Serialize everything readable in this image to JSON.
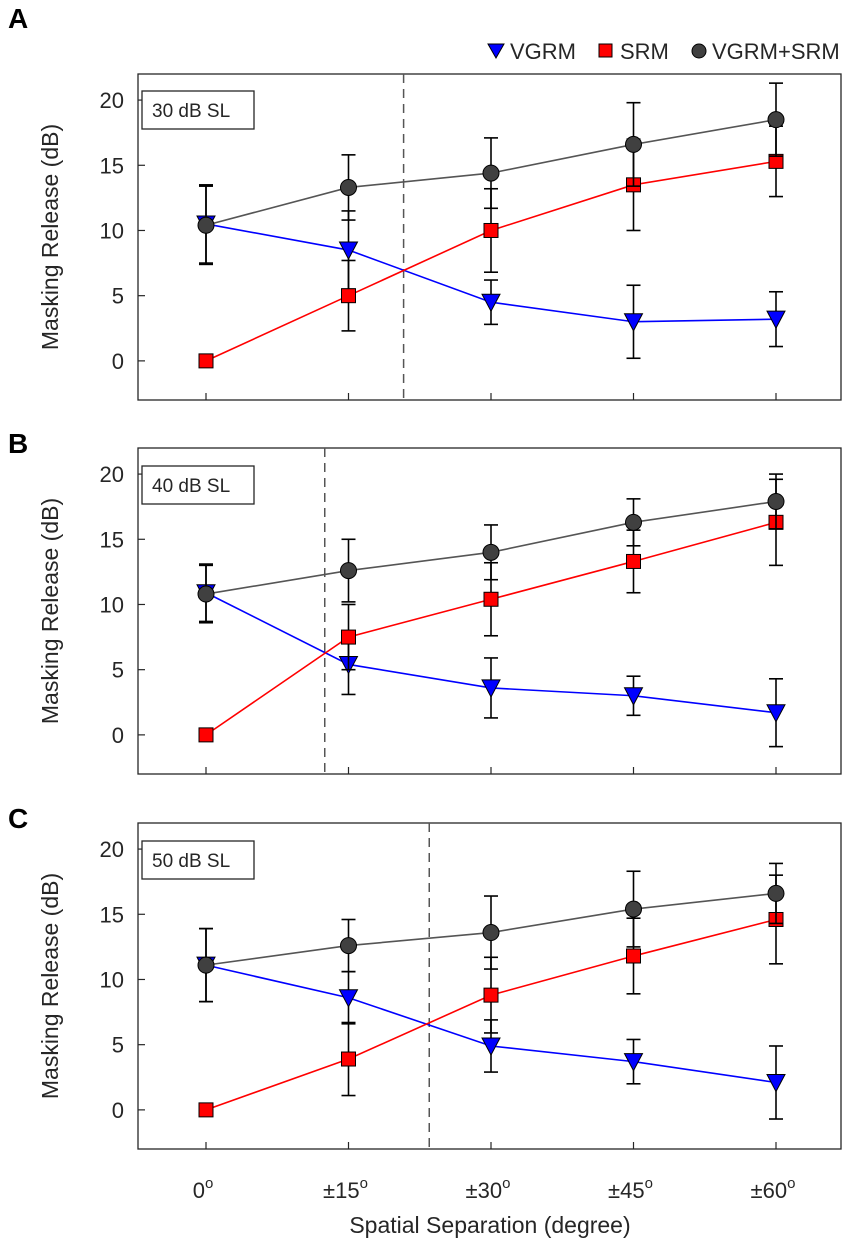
{
  "figure": {
    "xlabel": "Spatial Separation (degree)",
    "ylabel": "Masking Release (dB)",
    "legend": [
      {
        "label": "VGRM",
        "marker": "triangle-down",
        "color": "#0000ff"
      },
      {
        "label": "SRM",
        "marker": "square",
        "color": "#ff0000"
      },
      {
        "label": "VGRM+SRM",
        "marker": "circle",
        "color": "#404040"
      }
    ],
    "x_tick_labels": [
      {
        "base": "0",
        "sup": "o"
      },
      {
        "base": "±15",
        "sup": "o"
      },
      {
        "base": "±30",
        "sup": "o"
      },
      {
        "base": "±45",
        "sup": "o"
      },
      {
        "base": "±60",
        "sup": "o"
      }
    ]
  },
  "chart_data": [
    {
      "type": "line",
      "panel": "A",
      "annotation": "30 dB SL",
      "x": [
        0,
        15,
        30,
        45,
        60
      ],
      "ylim": [
        -3,
        22
      ],
      "yticks": [
        0,
        5,
        10,
        15,
        20
      ],
      "crossover_x": 20.8,
      "series": [
        {
          "name": "VGRM",
          "values": [
            10.5,
            8.5,
            4.5,
            3.0,
            3.2
          ],
          "err_low": [
            3.0,
            3.0,
            1.7,
            2.8,
            2.1
          ],
          "err_high": [
            3.0,
            3.0,
            1.7,
            2.8,
            2.1
          ]
        },
        {
          "name": "SRM",
          "values": [
            0.0,
            5.0,
            10.0,
            13.5,
            15.3
          ],
          "err_low": [
            0.0,
            2.7,
            3.2,
            3.5,
            2.7
          ],
          "err_high": [
            0.0,
            2.7,
            3.2,
            3.5,
            2.7
          ]
        },
        {
          "name": "VGRM+SRM",
          "values": [
            10.4,
            13.3,
            14.4,
            16.6,
            18.5
          ],
          "err_low": [
            3.0,
            2.5,
            2.7,
            3.2,
            2.8
          ],
          "err_high": [
            3.0,
            2.5,
            2.7,
            3.2,
            2.8
          ]
        }
      ]
    },
    {
      "type": "line",
      "panel": "B",
      "annotation": "40 dB SL",
      "x": [
        0,
        15,
        30,
        45,
        60
      ],
      "ylim": [
        -3,
        22
      ],
      "yticks": [
        0,
        5,
        10,
        15,
        20
      ],
      "crossover_x": 12.5,
      "series": [
        {
          "name": "VGRM",
          "values": [
            10.9,
            5.4,
            3.6,
            3.0,
            1.7
          ],
          "err_low": [
            2.2,
            2.3,
            2.3,
            1.5,
            2.6
          ],
          "err_high": [
            2.2,
            2.3,
            2.3,
            1.5,
            2.6
          ]
        },
        {
          "name": "SRM",
          "values": [
            0.0,
            7.5,
            10.4,
            13.3,
            16.3
          ],
          "err_low": [
            0.0,
            2.5,
            2.8,
            2.4,
            3.3
          ],
          "err_high": [
            0.0,
            2.5,
            2.8,
            2.4,
            3.3
          ]
        },
        {
          "name": "VGRM+SRM",
          "values": [
            10.8,
            12.6,
            14.0,
            16.3,
            17.9
          ],
          "err_low": [
            2.2,
            2.4,
            2.1,
            1.8,
            2.1
          ],
          "err_high": [
            2.2,
            2.4,
            2.1,
            1.8,
            2.1
          ]
        }
      ]
    },
    {
      "type": "line",
      "panel": "C",
      "annotation": "50 dB SL",
      "x": [
        0,
        15,
        30,
        45,
        60
      ],
      "ylim": [
        -3,
        22
      ],
      "yticks": [
        0,
        5,
        10,
        15,
        20
      ],
      "crossover_x": 23.5,
      "series": [
        {
          "name": "VGRM",
          "values": [
            11.1,
            8.6,
            4.9,
            3.7,
            2.1
          ],
          "err_low": [
            2.8,
            2.0,
            2.0,
            1.7,
            2.8
          ],
          "err_high": [
            2.8,
            2.0,
            2.0,
            1.7,
            2.8
          ]
        },
        {
          "name": "SRM",
          "values": [
            0.0,
            3.9,
            8.8,
            11.8,
            14.6
          ],
          "err_low": [
            0.0,
            2.8,
            2.9,
            2.9,
            3.4
          ],
          "err_high": [
            0.0,
            2.8,
            2.9,
            2.9,
            3.4
          ]
        },
        {
          "name": "VGRM+SRM",
          "values": [
            11.1,
            12.6,
            13.6,
            15.4,
            16.6
          ],
          "err_low": [
            2.8,
            2.0,
            2.8,
            2.9,
            2.3
          ],
          "err_high": [
            2.8,
            2.0,
            2.8,
            2.9,
            2.3
          ]
        }
      ]
    }
  ]
}
